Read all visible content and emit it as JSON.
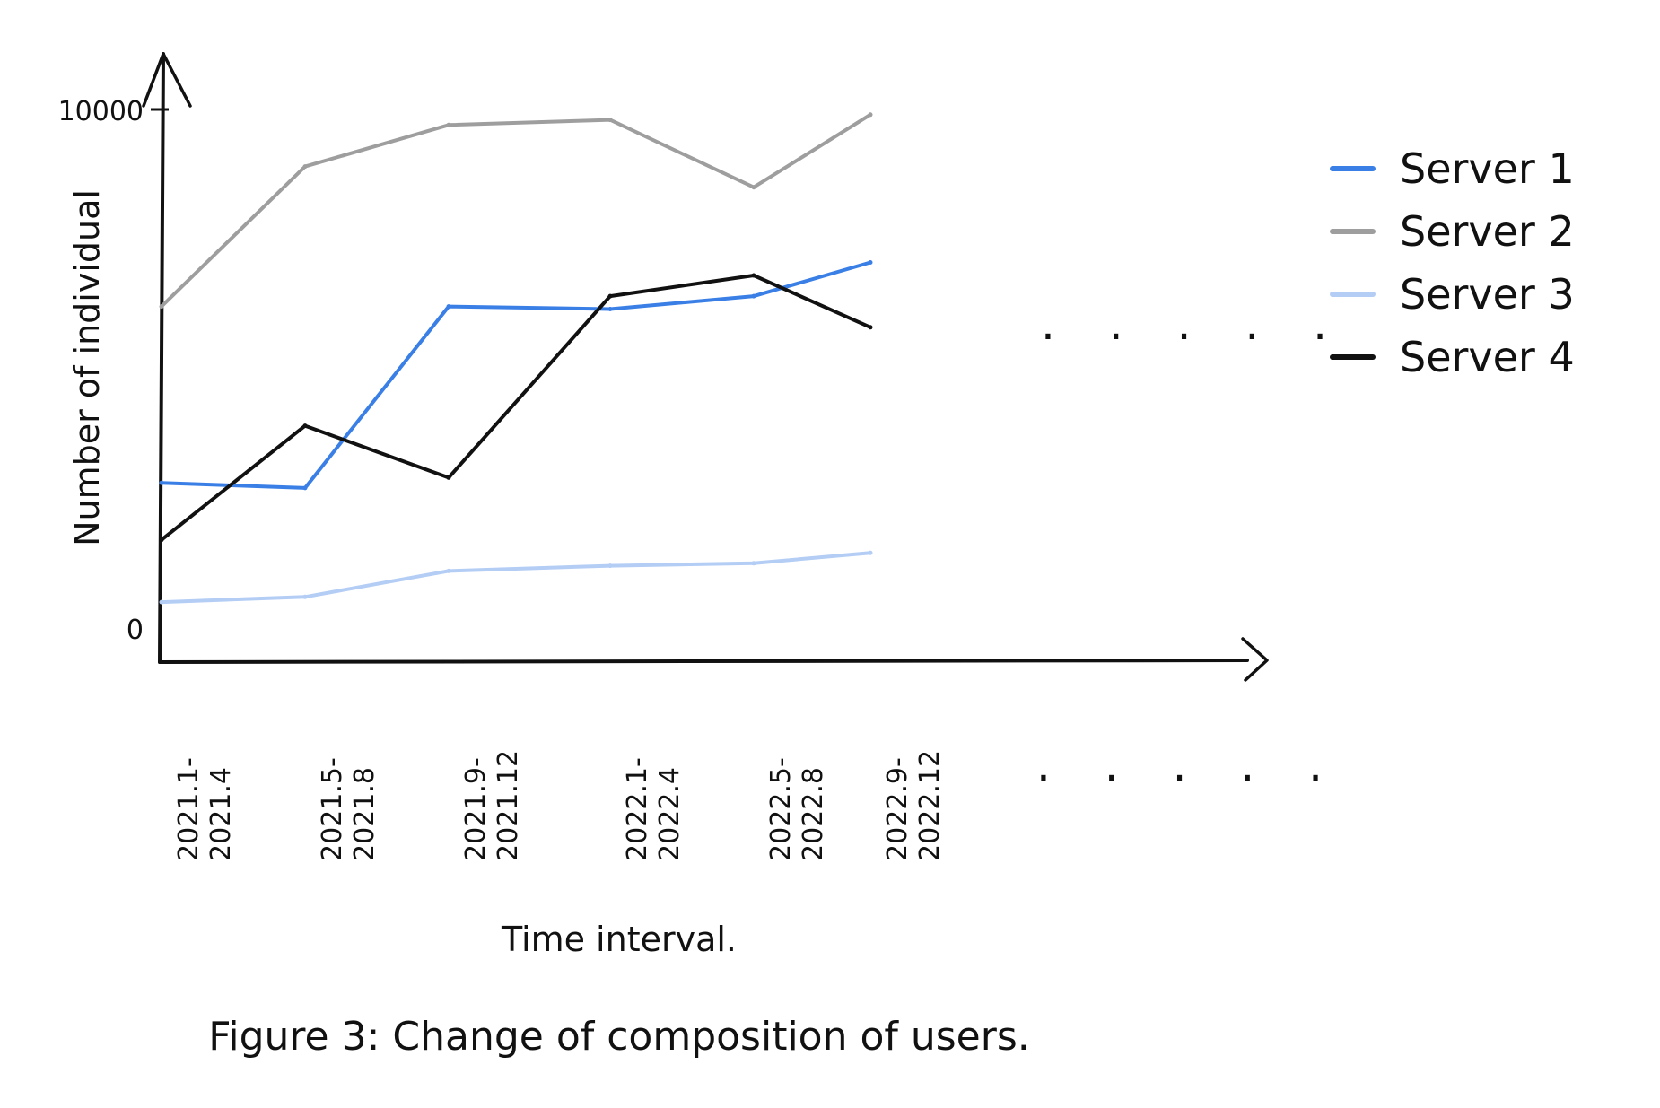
{
  "chart_data": {
    "type": "line",
    "title": "",
    "caption": "Figure 3: Change of composition of users.",
    "xlabel": "Time interval.",
    "ylabel": "Number of individual",
    "ylim": [
      0,
      10000
    ],
    "y_ticks": [
      {
        "value": 10000,
        "label": "10000"
      },
      {
        "value": 0,
        "label": "0"
      }
    ],
    "categories": [
      [
        "2021.1-",
        "2021.4"
      ],
      [
        "2021.5-",
        "2021.8"
      ],
      [
        "2021.9-",
        "2021.12"
      ],
      [
        "2022.1-",
        "2022.4"
      ],
      [
        "2022.5-",
        "2022.8"
      ],
      [
        "2022.9-",
        "2022.12"
      ]
    ],
    "x_ellipsis": ". . . . .",
    "series_ellipsis": ". . . . .",
    "legend_position": "right",
    "series": [
      {
        "name": "Server 1",
        "color": "#3a7fe6",
        "values": [
          2800,
          2700,
          6200,
          6150,
          6400,
          7050
        ]
      },
      {
        "name": "Server 2",
        "color": "#9e9e9e",
        "values": [
          6200,
          8900,
          9700,
          9800,
          8500,
          9900
        ]
      },
      {
        "name": "Server 3",
        "color": "#b3cdf5",
        "values": [
          500,
          600,
          1100,
          1200,
          1250,
          1450
        ]
      },
      {
        "name": "Server 4",
        "color": "#111111",
        "values": [
          1700,
          3900,
          2900,
          6400,
          6800,
          5800
        ]
      }
    ]
  }
}
